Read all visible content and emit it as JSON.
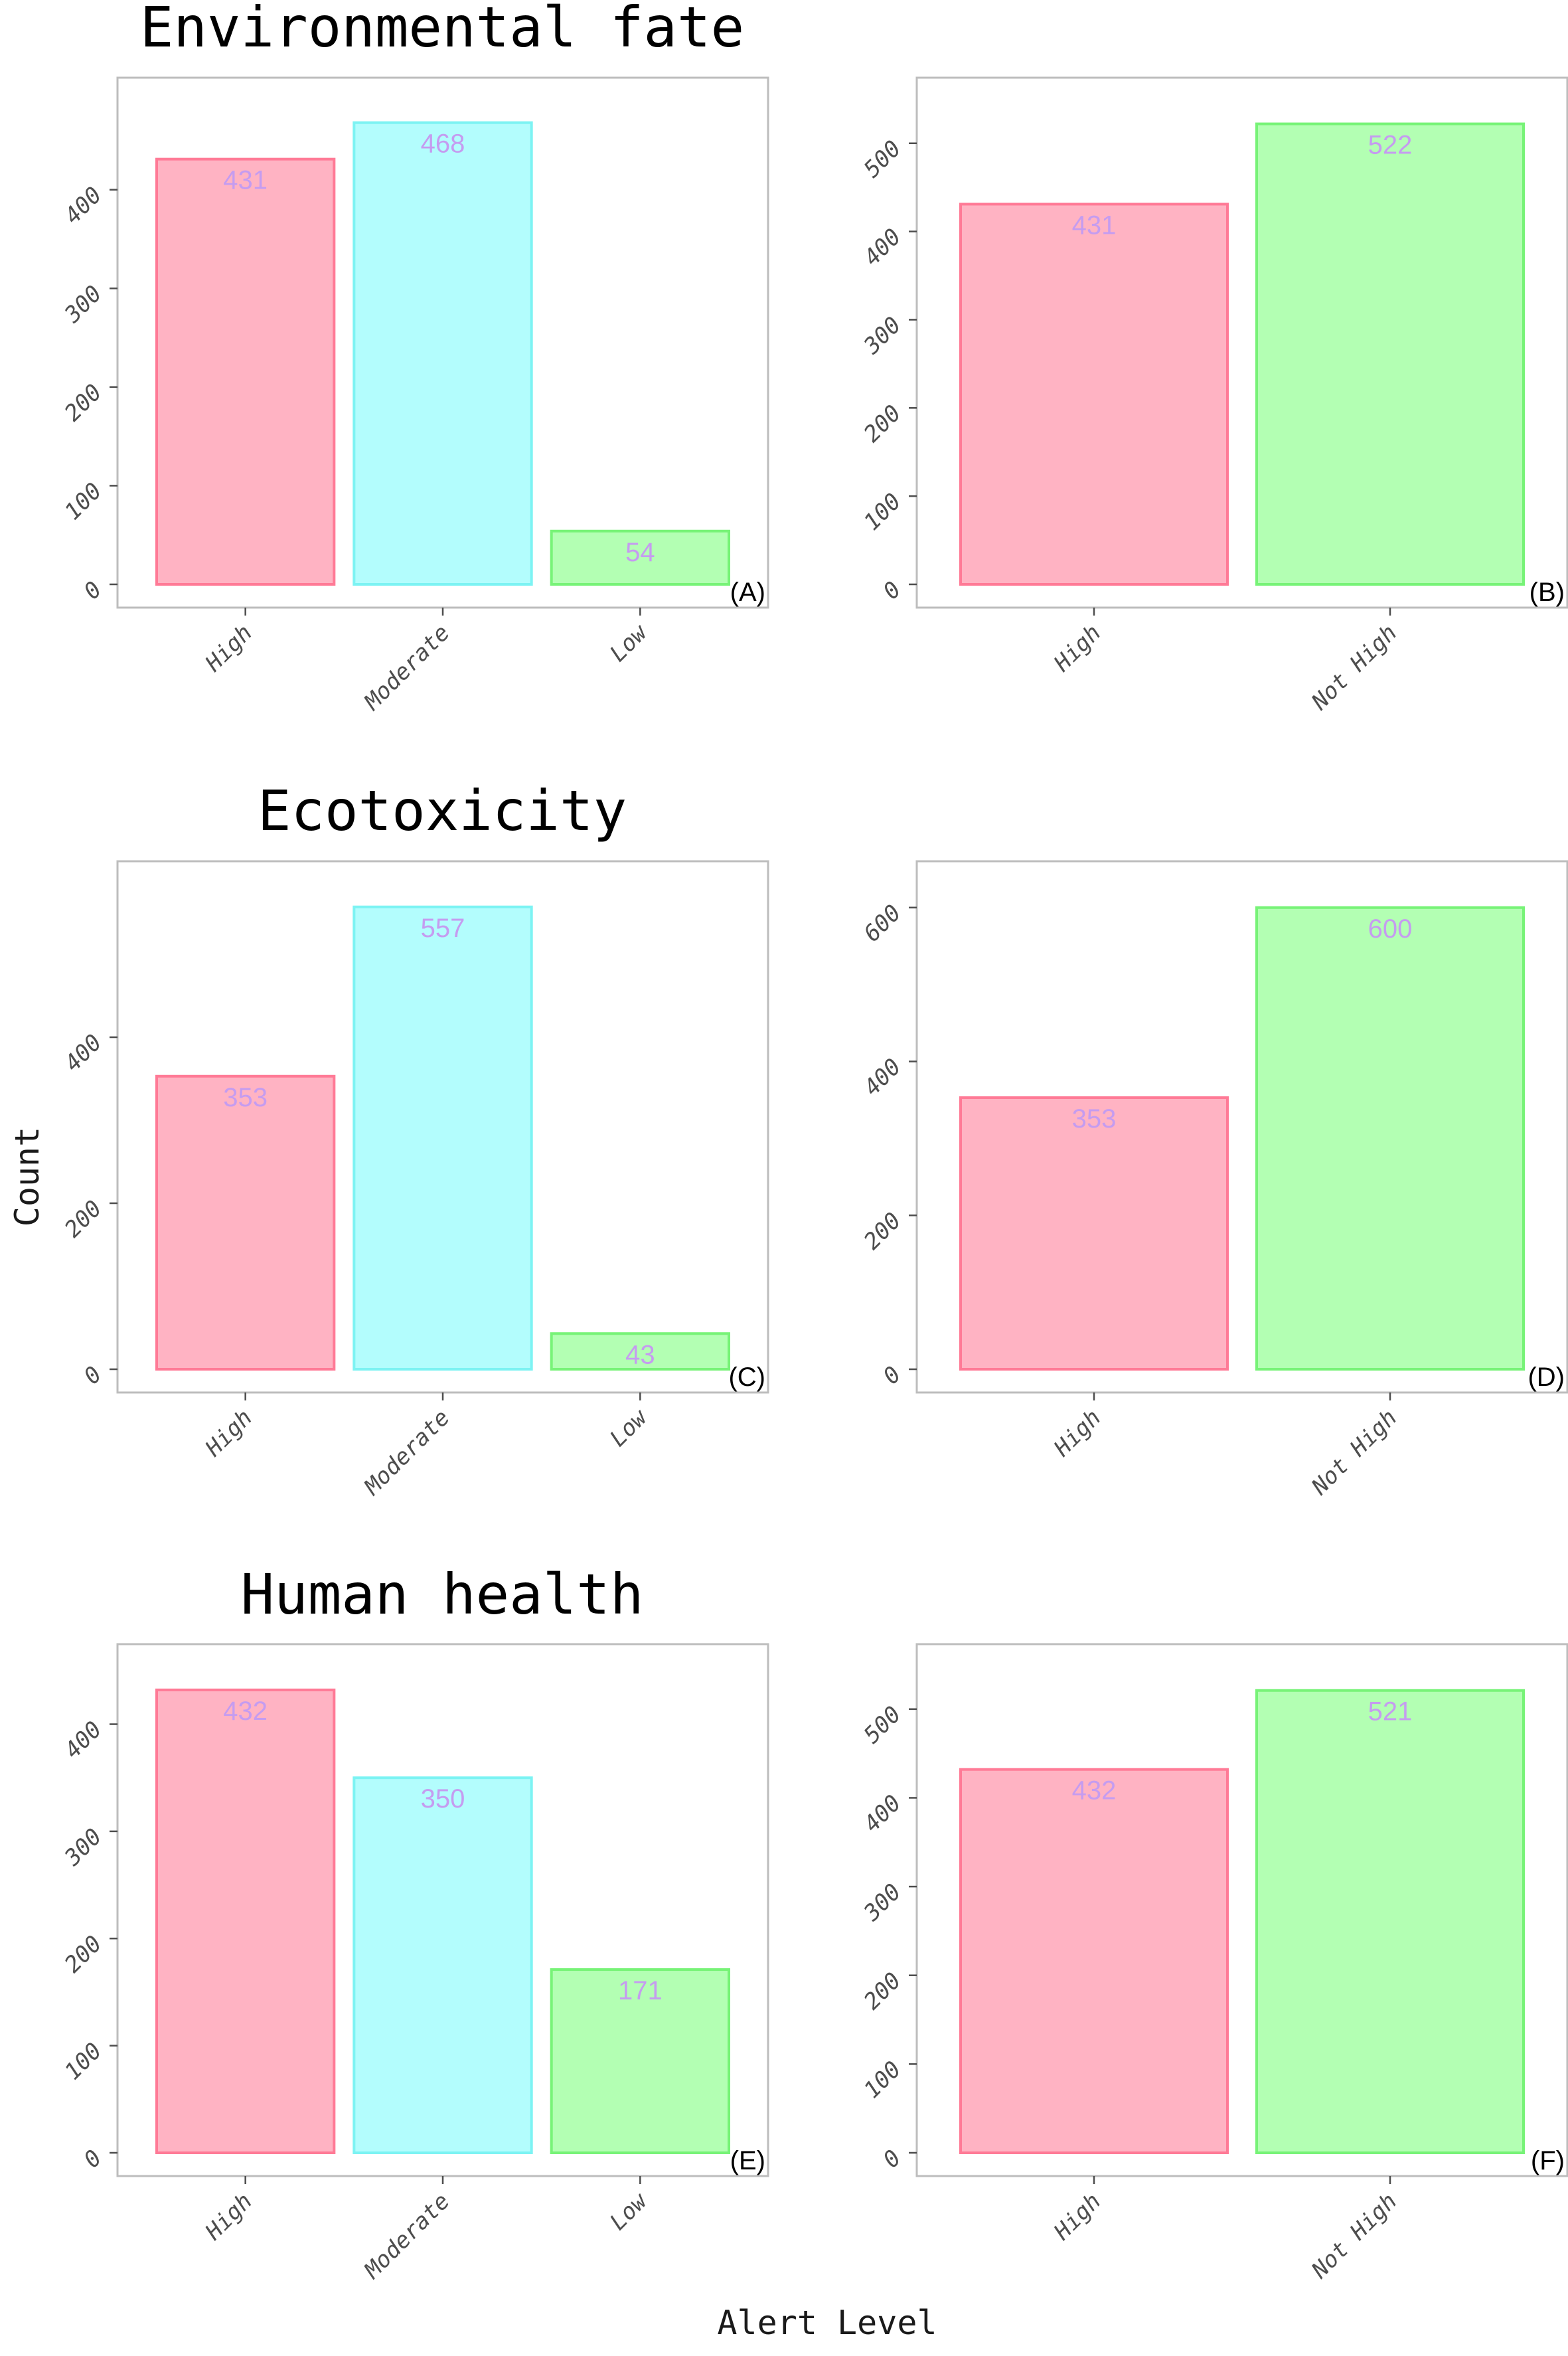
{
  "figure": {
    "ylabel": "Count",
    "xlabel": "Alert Level"
  },
  "colors": {
    "High": {
      "fill": "#ffb3c3",
      "stroke": "#ff7a96"
    },
    "Moderate": {
      "fill": "#b3fdfd",
      "stroke": "#7cf3f3"
    },
    "Low": {
      "fill": "#b3ffb3",
      "stroke": "#77f377"
    },
    "Not High": {
      "fill": "#b3ffb3",
      "stroke": "#77f377"
    }
  },
  "chart_data": [
    {
      "type": "bar",
      "title": "Environmental fate",
      "panel_label": "(A)",
      "categories": [
        "High",
        "Moderate",
        "Low"
      ],
      "values": [
        431,
        468,
        54
      ],
      "data_labels": [
        "431",
        "468",
        "54"
      ],
      "ylim": [
        0,
        490
      ],
      "yticks": [
        0,
        100,
        200,
        300,
        400
      ],
      "ytick_labels": [
        "0",
        "100",
        "200",
        "300",
        "400"
      ],
      "grid": false
    },
    {
      "type": "bar",
      "title": "",
      "panel_label": "(B)",
      "categories": [
        "High",
        "Not High"
      ],
      "values": [
        431,
        522
      ],
      "data_labels": [
        "431",
        "522"
      ],
      "ylim": [
        0,
        548
      ],
      "yticks": [
        0,
        100,
        200,
        300,
        400,
        500
      ],
      "ytick_labels": [
        "0",
        "100",
        "200",
        "300",
        "400",
        "500"
      ],
      "grid": false
    },
    {
      "type": "bar",
      "title": "Ecotoxicity",
      "panel_label": "(C)",
      "categories": [
        "High",
        "Moderate",
        "Low"
      ],
      "values": [
        353,
        557,
        43
      ],
      "data_labels": [
        "353",
        "557",
        "43"
      ],
      "ylim": [
        0,
        584
      ],
      "yticks": [
        0,
        200,
        400
      ],
      "ytick_labels": [
        "0",
        "200",
        "400"
      ],
      "grid": false
    },
    {
      "type": "bar",
      "title": "",
      "panel_label": "(D)",
      "categories": [
        "High",
        "Not High"
      ],
      "values": [
        353,
        600
      ],
      "data_labels": [
        "353",
        "600"
      ],
      "ylim": [
        0,
        630
      ],
      "yticks": [
        0,
        200,
        400,
        600
      ],
      "ytick_labels": [
        "0",
        "200",
        "400",
        "600"
      ],
      "grid": false
    },
    {
      "type": "bar",
      "title": "Human health",
      "panel_label": "(E)",
      "categories": [
        "High",
        "Moderate",
        "Low"
      ],
      "values": [
        432,
        350,
        171
      ],
      "data_labels": [
        "432",
        "350",
        "171"
      ],
      "ylim": [
        0,
        453
      ],
      "yticks": [
        0,
        100,
        200,
        300,
        400
      ],
      "ytick_labels": [
        "0",
        "100",
        "200",
        "300",
        "400"
      ],
      "grid": false
    },
    {
      "type": "bar",
      "title": "",
      "panel_label": "(F)",
      "categories": [
        "High",
        "Not High"
      ],
      "values": [
        432,
        521
      ],
      "data_labels": [
        "432",
        "521"
      ],
      "ylim": [
        0,
        547
      ],
      "yticks": [
        0,
        100,
        200,
        300,
        400,
        500
      ],
      "ytick_labels": [
        "0",
        "100",
        "200",
        "300",
        "400",
        "500"
      ],
      "grid": false
    }
  ]
}
